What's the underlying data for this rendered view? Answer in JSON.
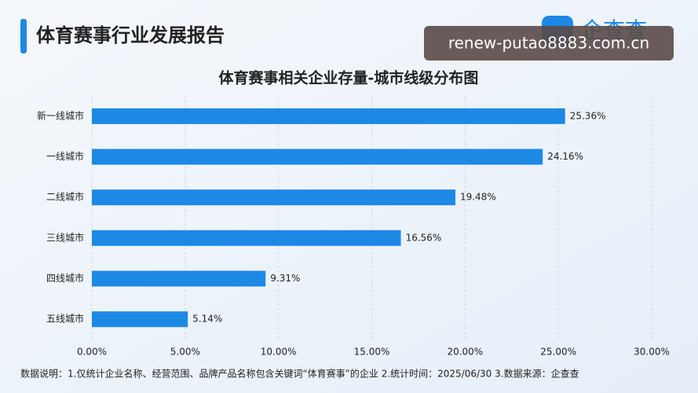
{
  "header": {
    "title": "体育赛事行业发展报告",
    "logo": "企查查",
    "watermark": "renew-putao8883.com.cn"
  },
  "chart_data": {
    "type": "hbar",
    "title": "体育赛事相关企业存量-城市线级分布图",
    "categories": [
      "新一线城市",
      "一线城市",
      "二线城市",
      "三线城市",
      "四线城市",
      "五线城市"
    ],
    "values": [
      25.36,
      24.16,
      19.48,
      16.56,
      9.31,
      5.14
    ],
    "value_labels": [
      "25.36%",
      "24.16%",
      "19.48%",
      "16.56%",
      "9.31%",
      "5.14%"
    ],
    "color": "#1e88e5",
    "xlim": [
      0,
      30
    ],
    "xticks": [
      {
        "value": 0,
        "label": "0.00%"
      },
      {
        "value": 5,
        "label": "5.00%"
      },
      {
        "value": 10,
        "label": "10.00%"
      },
      {
        "value": 15,
        "label": "15.00%"
      },
      {
        "value": 20,
        "label": "20.00%"
      },
      {
        "value": 25,
        "label": "25.00%"
      },
      {
        "value": 30,
        "label": "30.00%"
      }
    ],
    "grid": true
  },
  "footer": {
    "note": "数据说明：1.仅统计企业名称、经营范围、品牌产品名称包含关键词“体育赛事”的企业   2.统计时间：2025/06/30   3.数据来源：企查查"
  }
}
